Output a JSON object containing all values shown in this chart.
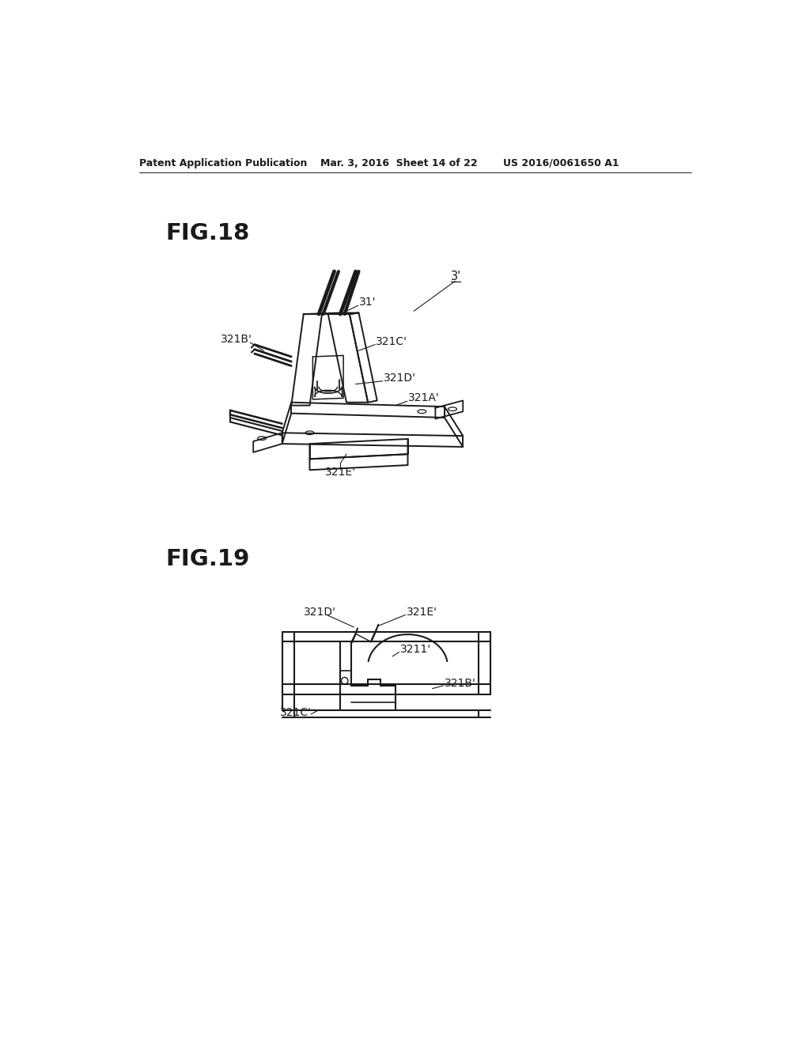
{
  "bg_color": "#ffffff",
  "fig_width": 10.24,
  "fig_height": 13.2,
  "header_left": "Patent Application Publication",
  "header_mid": "Mar. 3, 2016  Sheet 14 of 22",
  "header_right": "US 2016/0061650 A1",
  "fig18_label": "FIG.18",
  "fig19_label": "FIG.19",
  "line_color": "#1a1a1a",
  "text_color": "#1a1a1a"
}
